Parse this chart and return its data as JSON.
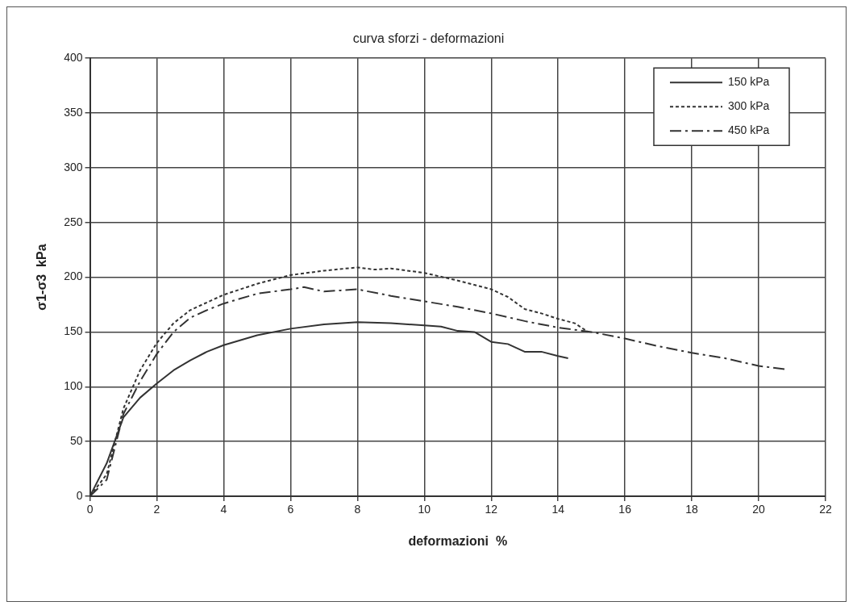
{
  "chart_data": {
    "type": "line",
    "title": "curva sforzi - deformazioni",
    "xlabel": "deformazioni  %",
    "ylabel": "σ1-σ3  kPa",
    "xlim": [
      0,
      22
    ],
    "xticks": [
      0,
      2,
      4,
      6,
      8,
      10,
      12,
      14,
      16,
      18,
      20,
      22
    ],
    "ylim": [
      0,
      400
    ],
    "yticks": [
      0,
      50,
      100,
      150,
      200,
      250,
      300,
      350,
      400
    ],
    "grid": true,
    "legend": "top right",
    "marker": "none",
    "series": [
      {
        "name": "150 kPa",
        "color": "#333333",
        "line_style": "solid",
        "x": [
          0,
          0.5,
          1,
          1.5,
          2,
          2.5,
          3,
          3.5,
          4,
          5,
          6,
          7,
          8,
          9,
          10,
          10.5,
          11,
          11.5,
          12,
          12.5,
          13,
          13.5,
          14,
          14.3
        ],
        "values": [
          0,
          30,
          72,
          90,
          103,
          115,
          124,
          132,
          138,
          147,
          153,
          157,
          159,
          158,
          156,
          155,
          151,
          150,
          141,
          139,
          132,
          132,
          128,
          126
        ]
      },
      {
        "name": "300 kPa",
        "color": "#333333",
        "line_style": "dotted",
        "x": [
          0,
          0.5,
          1,
          1.5,
          2,
          2.5,
          3,
          3.5,
          4,
          5,
          6,
          7,
          8,
          8.5,
          9,
          10,
          11,
          12,
          12.5,
          13,
          13.5,
          14,
          14.5,
          14.9
        ],
        "values": [
          0,
          20,
          80,
          115,
          140,
          158,
          170,
          177,
          184,
          194,
          202,
          206,
          209,
          207,
          208,
          204,
          197,
          189,
          182,
          171,
          167,
          162,
          158,
          150
        ]
      },
      {
        "name": "450 kPa",
        "color": "#333333",
        "line_style": "dashed",
        "x": [
          0,
          0.5,
          1,
          1.5,
          2,
          2.5,
          3,
          3.5,
          4,
          5,
          6,
          6.4,
          7,
          7.5,
          8,
          9,
          10,
          11,
          12,
          13,
          14,
          15,
          16,
          17,
          18,
          19,
          20,
          20.8
        ],
        "values": [
          0,
          15,
          75,
          105,
          130,
          150,
          163,
          170,
          176,
          185,
          189,
          191,
          187,
          188,
          189,
          183,
          178,
          173,
          167,
          160,
          154,
          150,
          144,
          137,
          131,
          126,
          119,
          116
        ]
      }
    ]
  }
}
